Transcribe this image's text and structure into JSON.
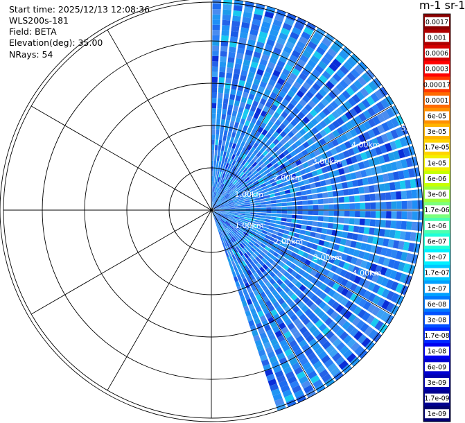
{
  "header": {
    "start_time": "Start time: 2025/12/13 12:08:36",
    "instrument": "WLS200s-181",
    "field": "Field: BETA",
    "elevation": "Elevation(deg): 35.00",
    "nrays": "NRays: 54"
  },
  "colorbar": {
    "title": "m-1 sr-1",
    "labels": [
      "0.0017",
      "0.001",
      "0.0006",
      "0.0003",
      "0.00017",
      "0.0001",
      "6e-05",
      "3e-05",
      "1.7e-05",
      "1e-05",
      "6e-06",
      "3e-06",
      "1.7e-06",
      "1e-06",
      "6e-07",
      "3e-07",
      "1.7e-07",
      "1e-07",
      "6e-08",
      "3e-08",
      "1.7e-08",
      "1e-08",
      "6e-09",
      "3e-09",
      "1.7e-09",
      "1e-09"
    ],
    "colors": [
      "#8b0000",
      "#b00000",
      "#d40000",
      "#ff0000",
      "#ff3800",
      "#ff6a00",
      "#ff9000",
      "#ffb400",
      "#ffd400",
      "#f4f000",
      "#c8ff00",
      "#9cff3c",
      "#7cff7c",
      "#4cffb0",
      "#20ffd8",
      "#00f0ff",
      "#00c8ff",
      "#00a0ff",
      "#0078ff",
      "#0050ff",
      "#0028ff",
      "#0000f0",
      "#0000d0",
      "#0000b0",
      "#000090",
      "#000070"
    ]
  },
  "chart_data": {
    "type": "polar-ppi",
    "field": "BETA",
    "units": "m-1 sr-1",
    "elevation_deg": 35.0,
    "n_rays": 54,
    "azimuth_range_deg": [
      0,
      162
    ],
    "range_ring_labels": [
      "1.00km",
      "2.00km",
      "3.00km",
      "4.00km",
      "5."
    ],
    "range_rings_km": [
      1,
      2,
      3,
      4,
      5
    ],
    "max_range_km": 5.0,
    "dominant_value_range": [
      1e-08,
      6e-08
    ],
    "colorbar_ticks": [
      0.0017,
      0.001,
      0.0006,
      0.0003,
      0.00017,
      0.0001,
      6e-05,
      3e-05,
      1.7e-05,
      1e-05,
      6e-06,
      3e-06,
      1.7e-06,
      1e-06,
      6e-07,
      3e-07,
      1.7e-07,
      1e-07,
      6e-08,
      3e-08,
      1.7e-08,
      1e-08,
      6e-09,
      3e-09,
      1.7e-09,
      1e-09
    ]
  }
}
